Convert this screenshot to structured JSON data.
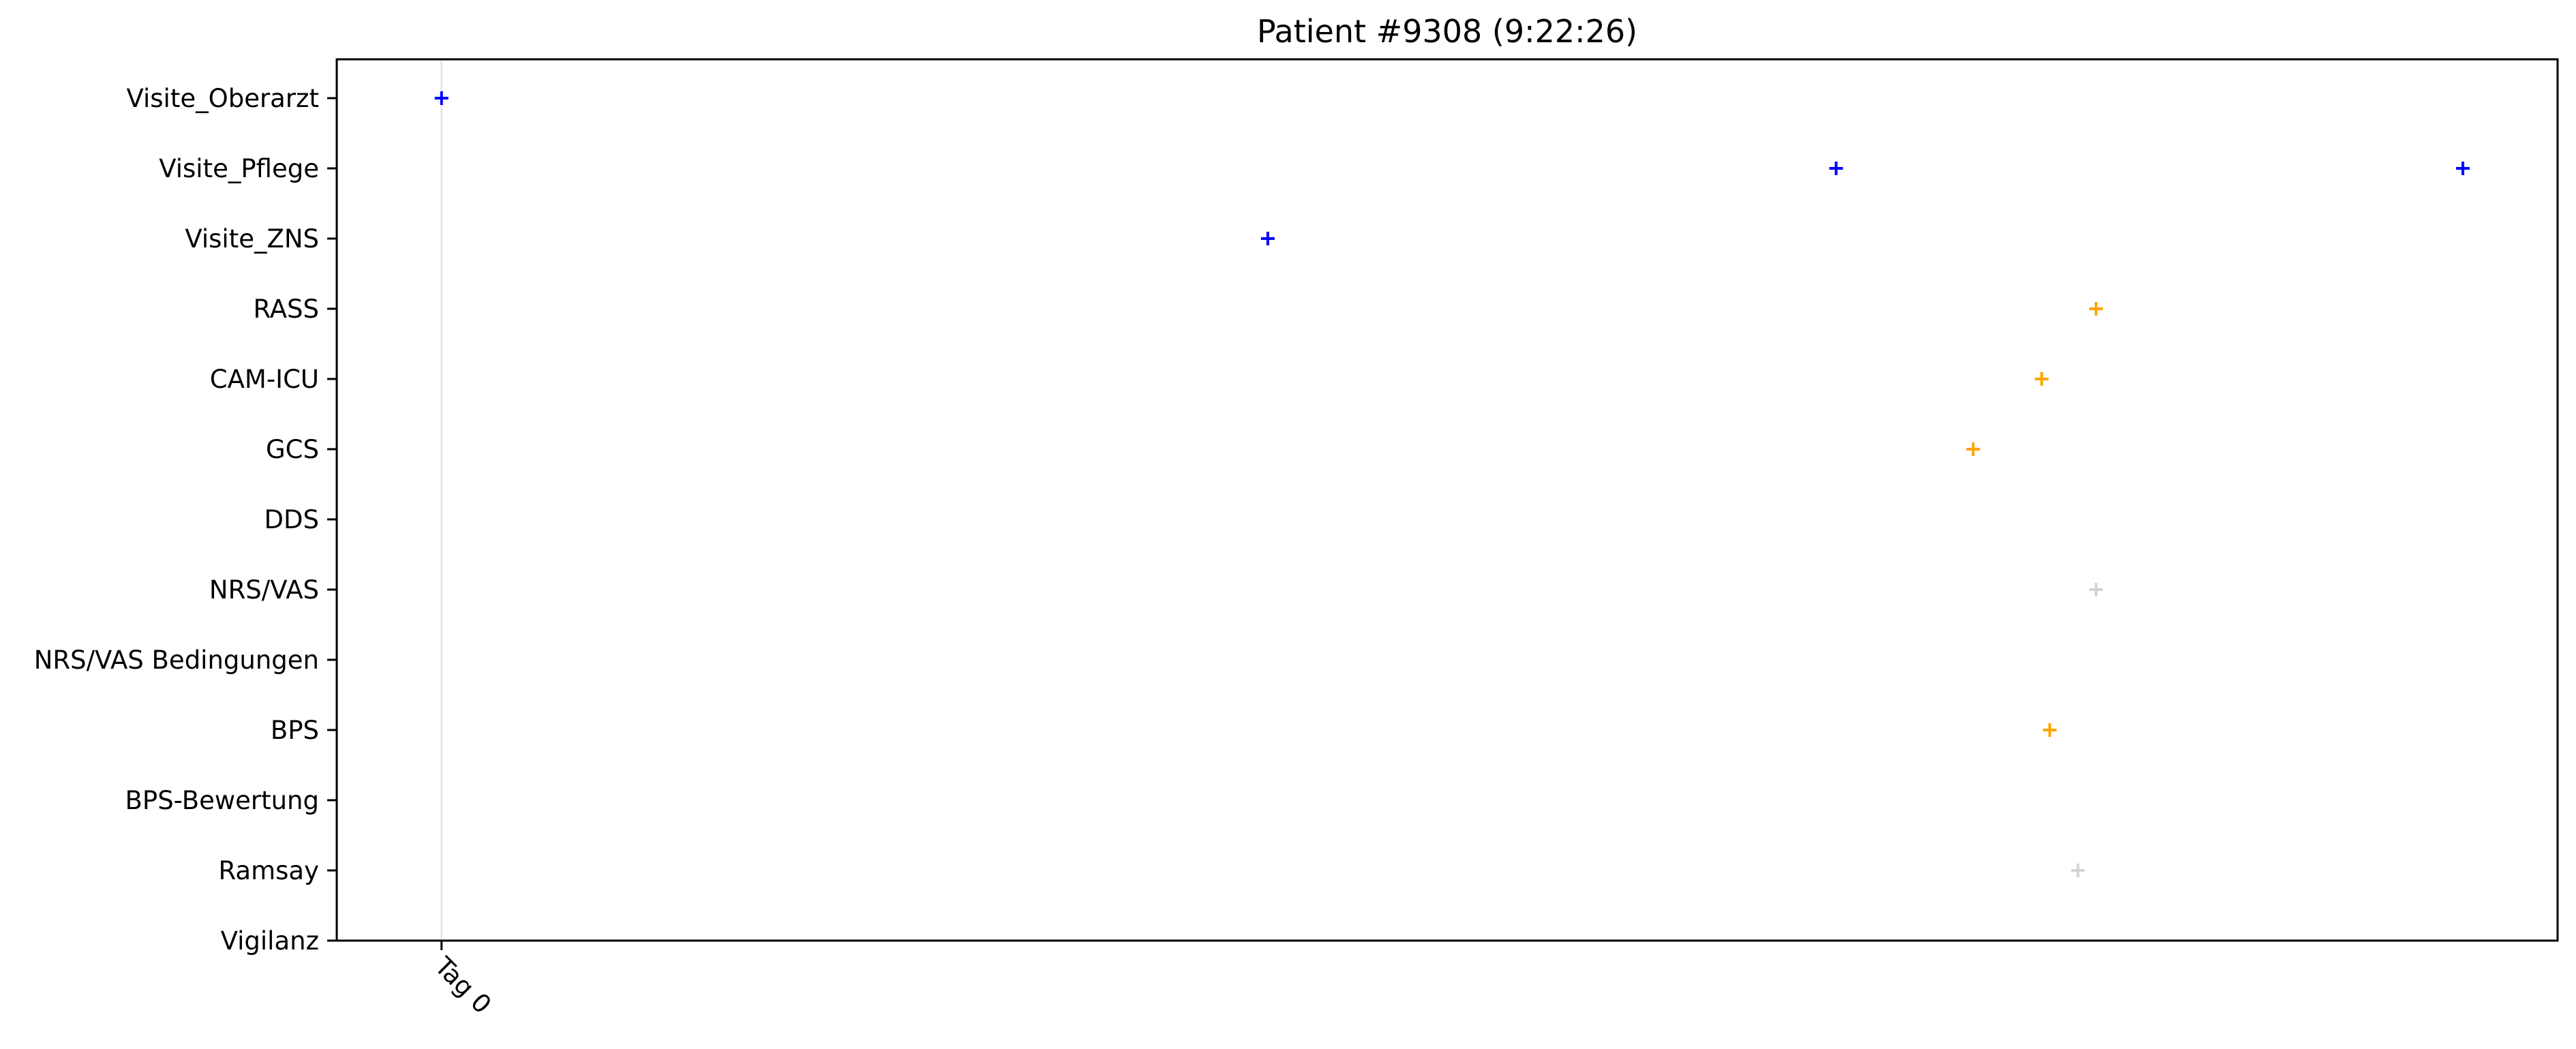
{
  "chart_data": {
    "type": "scatter",
    "title": "Patient #9308 (9:22:26)",
    "xlabel": "",
    "ylabel": "",
    "marker": "+",
    "grid": false,
    "categories": [
      "Visite_Oberarzt",
      "Visite_Pflege",
      "Visite_ZNS",
      "RASS",
      "CAM-ICU",
      "GCS",
      "DDS",
      "NRS/VAS",
      "NRS/VAS Bedingungen",
      "BPS",
      "BPS-Bewertung",
      "Ramsay",
      "Vigilanz"
    ],
    "x_ticks": [
      {
        "label": "Tag 0",
        "value": 0
      }
    ],
    "x_unit": "days",
    "xlim": [
      -0.052,
      1.05
    ],
    "reference_line": {
      "x": 0,
      "color": "#e6e6e6"
    },
    "colors": {
      "visit": "#0000ff",
      "assessment": "#ffa500",
      "pain_sedation": "#d3d3d3"
    },
    "points": [
      {
        "category": "Visite_Oberarzt",
        "x": 0.0,
        "color": "#0000ff"
      },
      {
        "category": "Visite_Pflege",
        "x": 0.692,
        "color": "#0000ff"
      },
      {
        "category": "Visite_Pflege",
        "x": 1.003,
        "color": "#0000ff"
      },
      {
        "category": "Visite_ZNS",
        "x": 0.41,
        "color": "#0000ff"
      },
      {
        "category": "RASS",
        "x": 0.821,
        "color": "#ffa500"
      },
      {
        "category": "CAM-ICU",
        "x": 0.794,
        "color": "#ffa500"
      },
      {
        "category": "GCS",
        "x": 0.76,
        "color": "#ffa500"
      },
      {
        "category": "NRS/VAS",
        "x": 0.821,
        "color": "#d3d3d3"
      },
      {
        "category": "BPS",
        "x": 0.798,
        "color": "#ffa500"
      },
      {
        "category": "Ramsay",
        "x": 0.812,
        "color": "#d3d3d3"
      }
    ]
  }
}
